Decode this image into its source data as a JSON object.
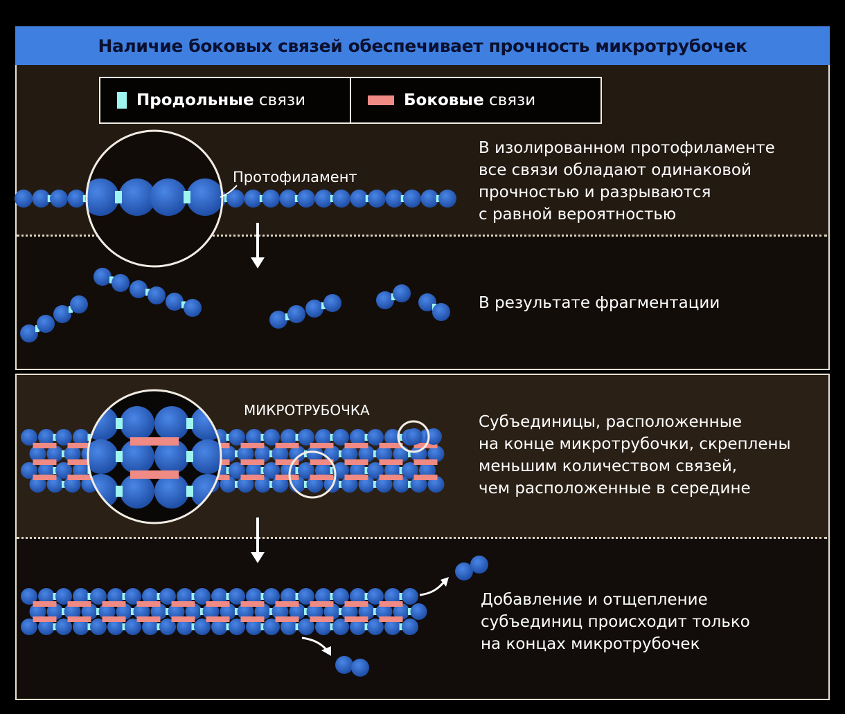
{
  "title": "Наличие боковых связей обеспечивает прочность микротрубочек",
  "legend": {
    "longitudinal": {
      "bold": "Продольные",
      "rest": "связи"
    },
    "lateral": {
      "bold": "Боковые",
      "rest": "связи"
    }
  },
  "labels": {
    "protofilament": "Протофиламент",
    "microtubule": "МИКРОТРУБОЧКА"
  },
  "captions": {
    "isolated": "В изолированном протофиламенте\nвсе связи обладают одинаковой\nпрочностью и разрываются\nс равной вероятностью",
    "fragmentation": "В результате фрагментации",
    "ends": "Субъединицы, расположенные\nна конце микротрубочки, скреплены\nменьшим количеством связей,\nчем расположенные в середине",
    "addition": "Добавление и отщепление\nсубъединиц происходит только\nна концах микротрубочек"
  },
  "colors": {
    "header": "#3f7fe0",
    "subunit": "#2f66c8",
    "longitudinal_bond": "#9ef4ee",
    "lateral_bond": "#f08a84"
  }
}
